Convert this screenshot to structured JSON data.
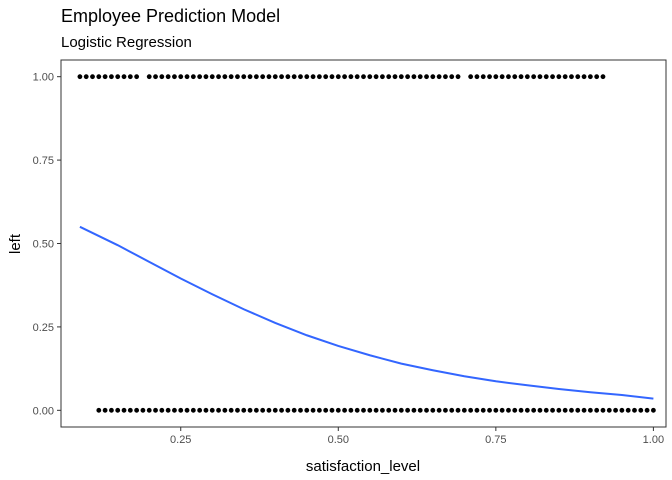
{
  "colors": {
    "background": "#ffffff",
    "panel_border": "#333333",
    "point": "#000000",
    "fit_line": "#3366FF",
    "tick_text": "#4d4d4d",
    "axis_title": "#000000"
  },
  "chart_data": {
    "type": "scatter",
    "title": "Employee Prediction Model",
    "subtitle": "Logistic Regression",
    "xlabel": "satisfaction_level",
    "ylabel": "left",
    "xlim": [
      0.06,
      1.02
    ],
    "ylim": [
      -0.05,
      1.05
    ],
    "x_ticks": [
      0.25,
      0.5,
      0.75,
      1.0
    ],
    "x_tick_labels": [
      "0.25",
      "0.50",
      "0.75",
      "1.00"
    ],
    "y_ticks": [
      0.0,
      0.25,
      0.5,
      0.75,
      1.0
    ],
    "y_tick_labels": [
      "0.00",
      "0.25",
      "0.50",
      "0.75",
      "1.00"
    ],
    "grid": false,
    "legend": "none",
    "series": [
      {
        "kind": "points",
        "y": 1,
        "x_ranges": [
          [
            0.09,
            0.18
          ],
          [
            0.2,
            0.52
          ],
          [
            0.53,
            0.69
          ],
          [
            0.71,
            0.92
          ]
        ],
        "step": 0.01
      },
      {
        "kind": "points",
        "y": 0,
        "x_ranges": [
          [
            0.12,
            1.0
          ]
        ],
        "step": 0.01
      },
      {
        "kind": "line",
        "x": [
          0.09,
          0.15,
          0.2,
          0.25,
          0.3,
          0.35,
          0.4,
          0.45,
          0.5,
          0.55,
          0.6,
          0.65,
          0.7,
          0.75,
          0.8,
          0.85,
          0.9,
          0.95,
          1.0
        ],
        "y": [
          0.55,
          0.495,
          0.445,
          0.395,
          0.348,
          0.303,
          0.262,
          0.225,
          0.193,
          0.165,
          0.14,
          0.12,
          0.102,
          0.087,
          0.075,
          0.064,
          0.054,
          0.046,
          0.035
        ]
      }
    ]
  }
}
